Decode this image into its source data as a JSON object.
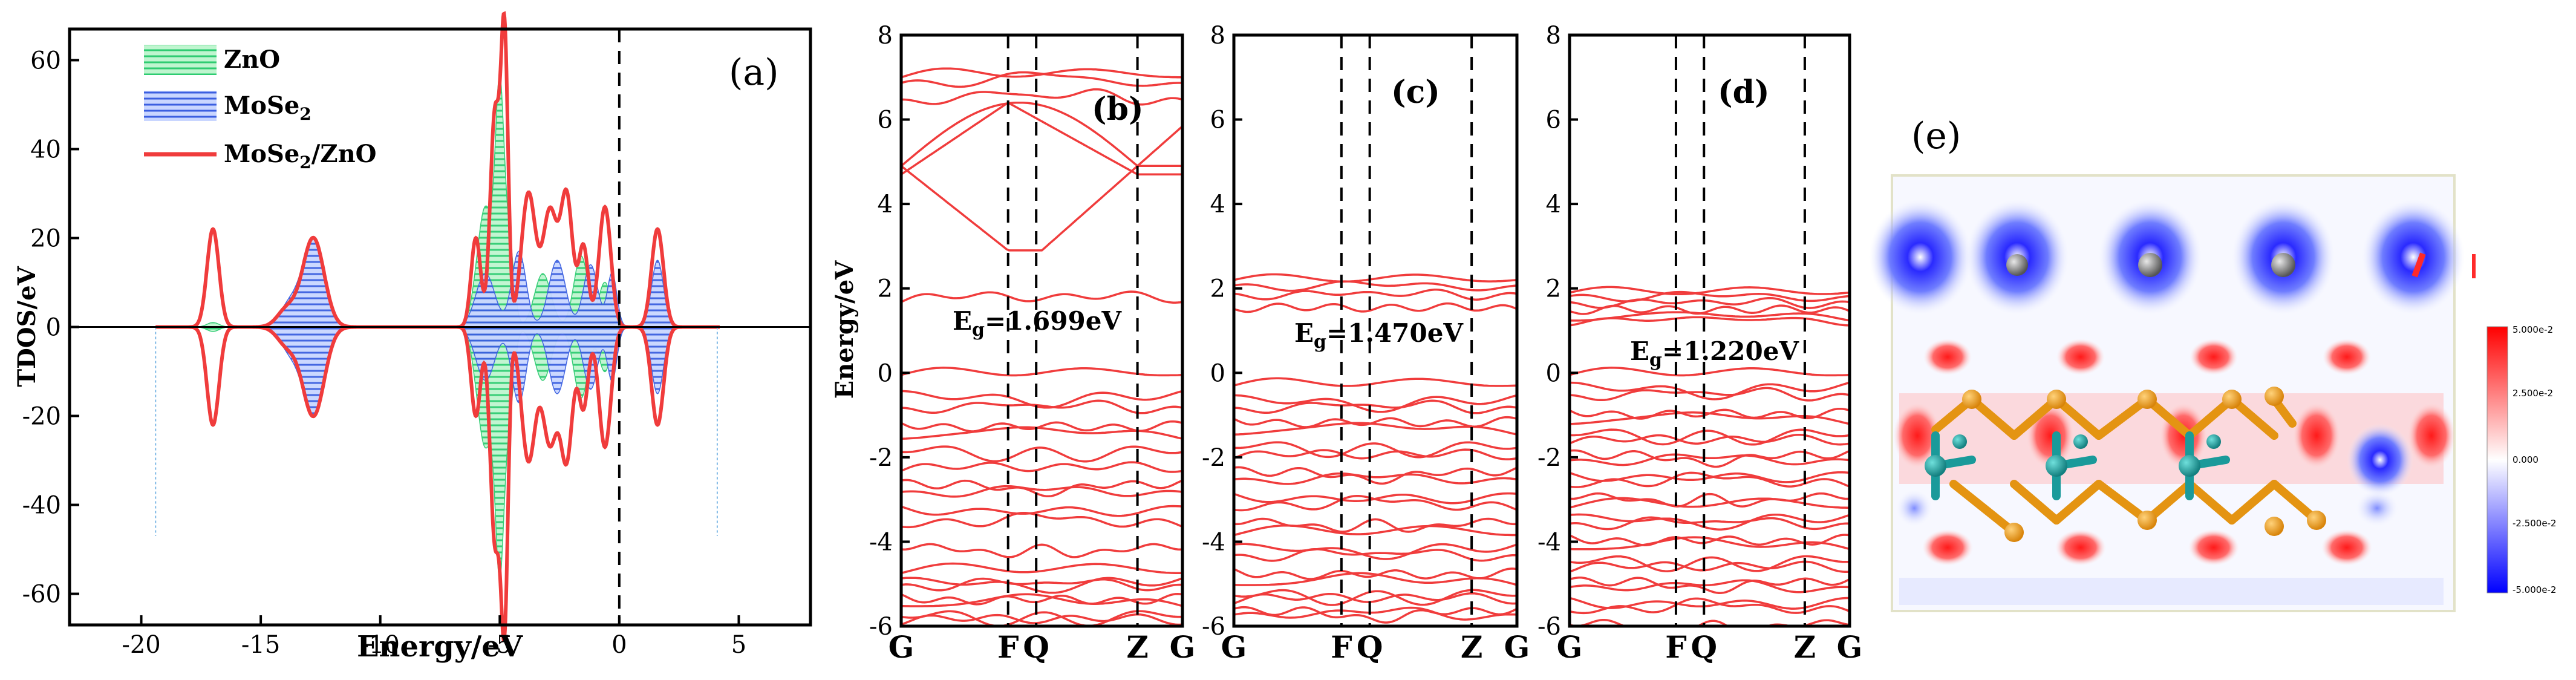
{
  "chart_data": [
    {
      "type": "area",
      "panel_label": "(a)",
      "xlabel": "Energy/eV",
      "ylabel": "TDOS/eV",
      "xlim": [
        -23,
        8
      ],
      "ylim": [
        -67,
        67
      ],
      "xticks": [
        -20,
        -15,
        -10,
        -5,
        0,
        5
      ],
      "yticks": [
        -60,
        -40,
        -20,
        0,
        20,
        40,
        60
      ],
      "fermi_level": 0,
      "legend": [
        "ZnO",
        "MoSe2",
        "MoSe2/ZnO"
      ],
      "legend_parts": {
        "mose2_main": "MoSe",
        "mose2_sub": "2",
        "het_main": "MoSe",
        "het_sub": "2",
        "het_tail": "/ZnO"
      },
      "series": [
        {
          "name": "ZnO",
          "style": "green-hatched-fill",
          "color": "#2ecc71",
          "peaks": [
            [
              -17.0,
              1.0,
              0.25
            ],
            [
              -5.6,
              27,
              0.35
            ],
            [
              -5.0,
              48,
              0.18
            ],
            [
              -4.6,
              18,
              0.2
            ],
            [
              -3.2,
              12,
              0.35
            ],
            [
              -1.6,
              16,
              0.3
            ],
            [
              -0.6,
              10,
              0.25
            ]
          ]
        },
        {
          "name": "MoSe2",
          "style": "blue-hatched-fill",
          "color": "#3b5fe0",
          "peaks": [
            [
              -12.8,
              20,
              0.45
            ],
            [
              -13.8,
              5,
              0.4
            ],
            [
              -5.6,
              12,
              0.4
            ],
            [
              -4.2,
              17,
              0.3
            ],
            [
              -2.6,
              15,
              0.35
            ],
            [
              -1.2,
              14,
              0.3
            ],
            [
              -0.3,
              12,
              0.2
            ],
            [
              1.6,
              15,
              0.25
            ]
          ]
        },
        {
          "name": "MoSe2/ZnO",
          "style": "red-line",
          "color": "#f03c3c",
          "peaks": [
            [
              -17.0,
              22,
              0.25
            ],
            [
              -12.8,
              20,
              0.45
            ],
            [
              -13.9,
              4,
              0.4
            ],
            [
              -6.0,
              20,
              0.2
            ],
            [
              -5.2,
              48,
              0.2
            ],
            [
              -4.8,
              63,
              0.15
            ],
            [
              -3.8,
              30,
              0.3
            ],
            [
              -2.9,
              26,
              0.3
            ],
            [
              -2.2,
              29,
              0.25
            ],
            [
              -1.5,
              18,
              0.2
            ],
            [
              -0.6,
              27,
              0.25
            ],
            [
              1.6,
              22,
              0.25
            ]
          ]
        }
      ]
    },
    {
      "type": "line",
      "panel_label": "(b)",
      "gap_label": "E",
      "gap_sub": "g",
      "gap_value": "=1.699eV",
      "ylabel": "Energy/eV",
      "ylim": [
        -6,
        8
      ],
      "yticks": [
        -6,
        -4,
        -2,
        0,
        2,
        4,
        6,
        8
      ],
      "kpoints": [
        "G",
        "F",
        "Q",
        "Z",
        "G"
      ],
      "kpoint_pos": [
        0,
        0.38,
        0.48,
        0.84,
        1
      ],
      "conduction_bands": [
        7.0,
        6.8,
        6.4,
        4.9,
        4.7,
        2.9,
        1.7
      ],
      "valence_bands": [
        -0.05,
        -0.5,
        -0.9,
        -1.2,
        -1.5,
        -1.8,
        -2.3,
        -2.6,
        -2.9,
        -3.2,
        -3.6,
        -4.1,
        -4.7,
        -4.9,
        -5.1,
        -5.3,
        -5.5,
        -5.7,
        -5.9
      ]
    },
    {
      "type": "line",
      "panel_label": "(c)",
      "gap_label": "E",
      "gap_sub": "g",
      "gap_value": "=1.470eV",
      "ylabel": "",
      "ylim": [
        -6,
        8
      ],
      "yticks": [
        -6,
        -4,
        -2,
        0,
        2,
        4,
        6,
        8
      ],
      "kpoints": [
        "G",
        "F",
        "Q",
        "Z",
        "G"
      ],
      "kpoint_pos": [
        0,
        0.38,
        0.48,
        0.84,
        1
      ],
      "conduction_bands": [
        2.2,
        2.0,
        1.8,
        1.5
      ],
      "valence_bands": [
        -0.3,
        -0.6,
        -0.9,
        -1.1,
        -1.4,
        -1.7,
        -2.0,
        -2.3,
        -2.6,
        -2.9,
        -3.2,
        -3.5,
        -3.8,
        -4.1,
        -4.4,
        -4.7,
        -5.0,
        -5.2,
        -5.4,
        -5.6,
        -5.8
      ]
    },
    {
      "type": "line",
      "panel_label": "(d)",
      "gap_label": "E",
      "gap_sub": "g",
      "gap_value": "=1.220eV",
      "ylabel": "",
      "ylim": [
        -6,
        8
      ],
      "yticks": [
        -6,
        -4,
        -2,
        0,
        2,
        4,
        6,
        8
      ],
      "kpoints": [
        "G",
        "F",
        "Q",
        "Z",
        "G"
      ],
      "kpoint_pos": [
        0,
        0.38,
        0.48,
        0.84,
        1
      ],
      "conduction_bands": [
        1.9,
        1.75,
        1.6,
        1.45,
        1.3,
        1.2
      ],
      "valence_bands": [
        -0.05,
        -0.3,
        -0.6,
        -0.9,
        -1.15,
        -1.4,
        -1.65,
        -1.9,
        -2.15,
        -2.4,
        -2.65,
        -2.9,
        -3.15,
        -3.4,
        -3.65,
        -3.9,
        -4.15,
        -4.4,
        -4.65,
        -4.9,
        -5.15,
        -5.4,
        -5.65,
        -5.9
      ]
    },
    {
      "type": "heatmap",
      "panel_label": "(e)",
      "colorbar": [
        "5.000e-2",
        "2.500e-2",
        "0.000",
        "-2.500e-2",
        "-5.000e-2"
      ]
    }
  ]
}
